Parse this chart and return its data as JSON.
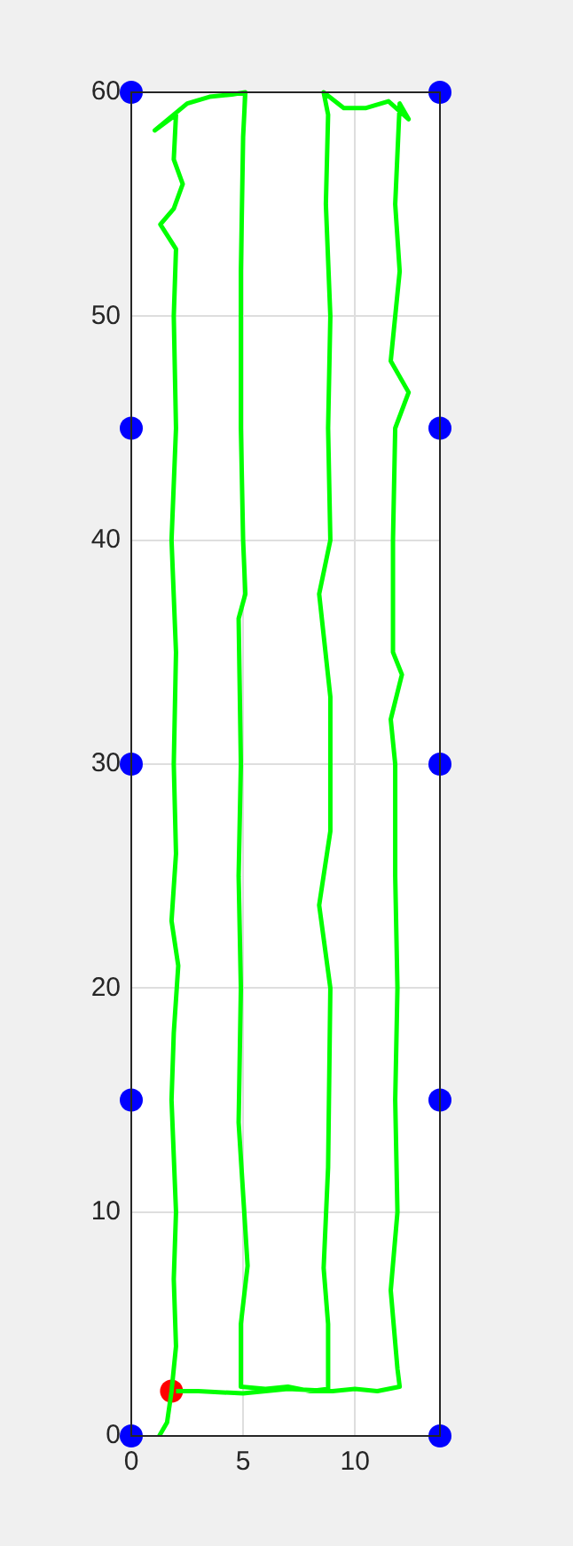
{
  "chart_data": {
    "type": "scatter",
    "xlim": [
      0,
      13.8
    ],
    "ylim": [
      0,
      60
    ],
    "xticks": [
      0,
      5,
      10
    ],
    "yticks": [
      0,
      10,
      20,
      30,
      40,
      50,
      60
    ],
    "grid": true,
    "legend": false,
    "series": [
      {
        "type": "line",
        "color": "#00ff00",
        "marker": "none",
        "line_style": "solid",
        "x": [
          1.25,
          1.6,
          1.8,
          2.0,
          1.9,
          2.0,
          1.8,
          1.9,
          2.1,
          1.8,
          2.0,
          1.9,
          2.0,
          1.8,
          2.0,
          1.9,
          2.0,
          1.3,
          1.9,
          2.3,
          1.9,
          2.0,
          1.05,
          2.5,
          3.5,
          4.5,
          5.1,
          5.0,
          4.9,
          4.9,
          5.0,
          5.1,
          4.8,
          4.9,
          4.8,
          4.9,
          4.8,
          5.2,
          4.9,
          4.9,
          6.0,
          7.0,
          8.0,
          8.8,
          8.8,
          8.6,
          8.8,
          8.9,
          8.4,
          8.9,
          8.9,
          8.4,
          8.9,
          8.8,
          8.9,
          8.7,
          8.8,
          8.6,
          9.5,
          10.5,
          11.5,
          12.4,
          12.0,
          11.8,
          12.0,
          11.6,
          12.4,
          11.8,
          11.7,
          11.7,
          12.1,
          11.6,
          11.8,
          11.8,
          11.9,
          11.8,
          11.9,
          11.6,
          11.9,
          12.0,
          11.0,
          10.0,
          9.0,
          7.0,
          5.0,
          3.0,
          2.0
        ],
        "values": [
          0,
          0.6,
          2.0,
          4,
          7,
          10,
          15,
          18,
          21,
          23,
          26,
          30,
          35,
          40,
          45,
          50,
          53,
          54.1,
          54.8,
          55.9,
          57,
          59,
          58.3,
          59.5,
          59.8,
          59.9,
          60,
          58,
          52,
          45,
          40,
          37.6,
          36.5,
          30,
          25,
          20,
          14,
          7.6,
          5,
          2.2,
          2.1,
          2.2,
          2.0,
          2.1,
          5,
          7.5,
          12,
          20,
          23.7,
          27,
          33,
          37.6,
          40,
          45,
          50,
          55,
          59,
          60,
          59.3,
          59.3,
          59.6,
          58.8,
          59.5,
          55,
          52,
          48,
          46.6,
          45,
          40,
          35,
          34.0,
          32,
          30,
          25,
          20,
          15,
          10,
          6.5,
          3,
          2.2,
          2.0,
          2.1,
          2.0,
          2.1,
          1.9,
          2.0,
          2.0
        ]
      },
      {
        "type": "scatter",
        "color": "#0000ff",
        "marker": "circle",
        "x": [
          0,
          0,
          0,
          0,
          0,
          13.8,
          13.8,
          13.8,
          13.8,
          13.8
        ],
        "values": [
          0,
          15,
          30,
          45,
          60,
          0,
          15,
          30,
          45,
          60
        ]
      },
      {
        "type": "scatter",
        "color": "#ff0000",
        "marker": "circle",
        "x": [
          1.8
        ],
        "values": [
          2.0
        ]
      }
    ]
  }
}
